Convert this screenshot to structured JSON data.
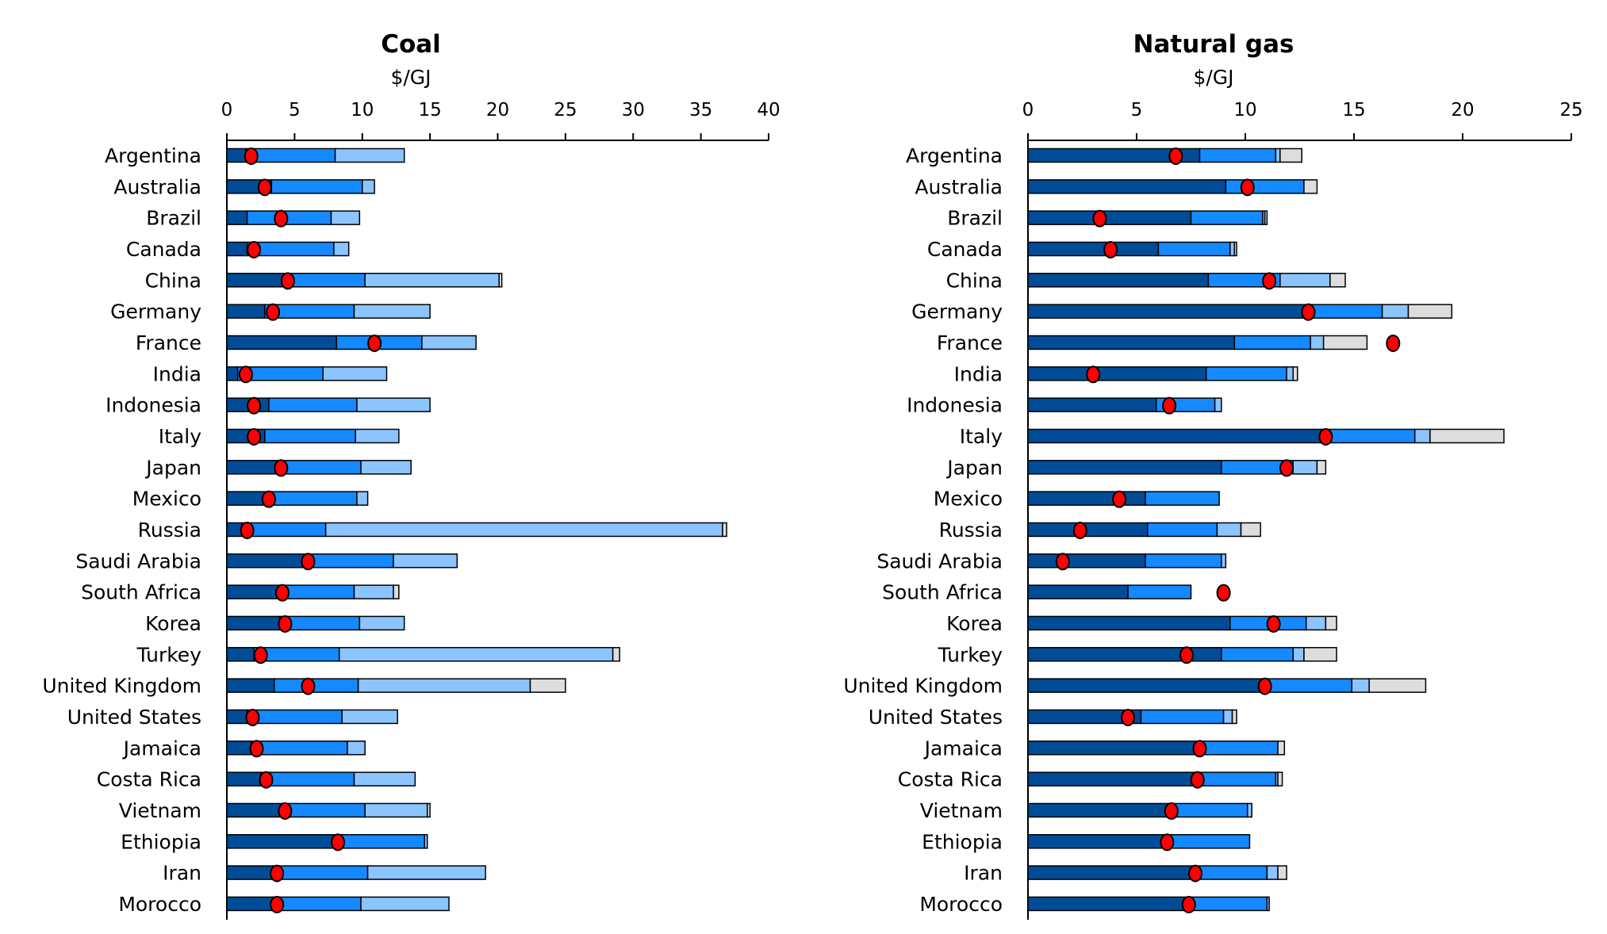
{
  "colors": {
    "segments": [
      "#004C97",
      "#1589FF",
      "#8CC4FF",
      "#DDDDDD"
    ],
    "dot": "#FF0000",
    "outline": "#000000"
  },
  "chart_data": [
    {
      "type": "bar",
      "orientation": "horizontal-stacked-with-markers",
      "title": "Coal",
      "xlabel": "$/GJ",
      "xlim": [
        0,
        40
      ],
      "xticks": [
        "0",
        "5",
        "10",
        "15",
        "20",
        "25",
        "30",
        "35",
        "40"
      ],
      "categories": [
        "Argentina",
        "Australia",
        "Brazil",
        "Canada",
        "China",
        "Germany",
        "France",
        "India",
        "Indonesia",
        "Italy",
        "Japan",
        "Mexico",
        "Russia",
        "Saudi Arabia",
        "South Africa",
        "Korea",
        "Turkey",
        "United Kingdom",
        "United States",
        "Jamaica",
        "Costa Rica",
        "Vietnam",
        "Ethiopia",
        "Iran",
        "Morocco"
      ],
      "stack_cumulative": [
        [
          1.4,
          8.0,
          13.1,
          13.1
        ],
        [
          3.3,
          10.0,
          10.9,
          10.9
        ],
        [
          1.5,
          7.7,
          9.8,
          9.8
        ],
        [
          1.5,
          7.9,
          9.0,
          9.0
        ],
        [
          4.2,
          10.2,
          20.1,
          20.3
        ],
        [
          2.8,
          9.4,
          15.0,
          15.0
        ],
        [
          8.1,
          14.4,
          18.4,
          18.4
        ],
        [
          0.8,
          7.1,
          11.8,
          11.8
        ],
        [
          3.1,
          9.6,
          15.0,
          15.0
        ],
        [
          2.8,
          9.5,
          12.7,
          12.7
        ],
        [
          3.9,
          9.9,
          13.6,
          13.6
        ],
        [
          3.0,
          9.6,
          10.4,
          10.4
        ],
        [
          1.1,
          7.3,
          36.6,
          36.9
        ],
        [
          5.8,
          12.3,
          17.0,
          17.0
        ],
        [
          3.9,
          9.4,
          12.3,
          12.7
        ],
        [
          3.9,
          9.8,
          13.1,
          13.1
        ],
        [
          2.0,
          8.3,
          28.5,
          29.0
        ],
        [
          3.5,
          9.7,
          22.4,
          25.0
        ],
        [
          1.5,
          8.5,
          12.6,
          12.6
        ],
        [
          1.8,
          8.9,
          10.2,
          10.2
        ],
        [
          2.5,
          9.4,
          13.9,
          13.9
        ],
        [
          4.1,
          10.2,
          14.8,
          15.0
        ],
        [
          7.9,
          14.6,
          14.8,
          14.8
        ],
        [
          3.4,
          10.4,
          19.1,
          19.1
        ],
        [
          3.4,
          9.9,
          16.4,
          16.4
        ]
      ],
      "markers": [
        1.8,
        2.8,
        4.0,
        2.0,
        4.5,
        3.4,
        10.9,
        1.4,
        2.0,
        2.0,
        4.0,
        3.1,
        1.5,
        6.0,
        4.1,
        4.3,
        2.5,
        6.0,
        1.9,
        2.2,
        2.9,
        4.3,
        8.2,
        3.7,
        3.7
      ]
    },
    {
      "type": "bar",
      "orientation": "horizontal-stacked-with-markers",
      "title": "Natural gas",
      "xlabel": "$/GJ",
      "xlim": [
        0,
        25
      ],
      "xticks": [
        "0",
        "5",
        "10",
        "15",
        "20",
        "25"
      ],
      "categories": [
        "Argentina",
        "Australia",
        "Brazil",
        "Canada",
        "China",
        "Germany",
        "France",
        "India",
        "Indonesia",
        "Italy",
        "Japan",
        "Mexico",
        "Russia",
        "Saudi Arabia",
        "South Africa",
        "Korea",
        "Turkey",
        "United Kingdom",
        "United States",
        "Jamaica",
        "Costa Rica",
        "Vietnam",
        "Ethiopia",
        "Iran",
        "Morocco"
      ],
      "stack_cumulative": [
        [
          7.9,
          11.4,
          11.6,
          12.6
        ],
        [
          9.1,
          12.7,
          12.7,
          13.3
        ],
        [
          7.5,
          10.8,
          10.9,
          11.0
        ],
        [
          6.0,
          9.3,
          9.5,
          9.6
        ],
        [
          8.3,
          11.6,
          13.9,
          14.6
        ],
        [
          12.9,
          16.3,
          17.5,
          19.5
        ],
        [
          9.5,
          13.0,
          13.6,
          15.6
        ],
        [
          8.2,
          11.9,
          12.2,
          12.4
        ],
        [
          5.9,
          8.6,
          8.9,
          8.9
        ],
        [
          13.6,
          17.8,
          18.5,
          21.9
        ],
        [
          8.9,
          12.2,
          13.3,
          13.7
        ],
        [
          5.4,
          8.8,
          8.8,
          8.8
        ],
        [
          5.5,
          8.7,
          9.8,
          10.7
        ],
        [
          5.4,
          8.9,
          9.1,
          9.1
        ],
        [
          4.6,
          7.5,
          7.5,
          7.5
        ],
        [
          9.3,
          12.8,
          13.7,
          14.2
        ],
        [
          8.9,
          12.2,
          12.7,
          14.2
        ],
        [
          10.9,
          14.9,
          15.7,
          18.3
        ],
        [
          5.2,
          9.0,
          9.4,
          9.6
        ],
        [
          7.9,
          11.5,
          11.5,
          11.8
        ],
        [
          7.8,
          11.4,
          11.5,
          11.7
        ],
        [
          6.6,
          10.1,
          10.3,
          10.3
        ],
        [
          6.4,
          10.2,
          10.2,
          10.2
        ],
        [
          7.7,
          11.0,
          11.5,
          11.9
        ],
        [
          7.4,
          11.0,
          11.1,
          11.1
        ]
      ],
      "markers": [
        6.8,
        10.1,
        3.3,
        3.8,
        11.1,
        12.9,
        16.8,
        3.0,
        6.5,
        13.7,
        11.9,
        4.2,
        2.4,
        1.6,
        9.0,
        11.3,
        7.3,
        10.9,
        4.6,
        7.9,
        7.8,
        6.6,
        6.4,
        7.7,
        7.4
      ]
    }
  ]
}
